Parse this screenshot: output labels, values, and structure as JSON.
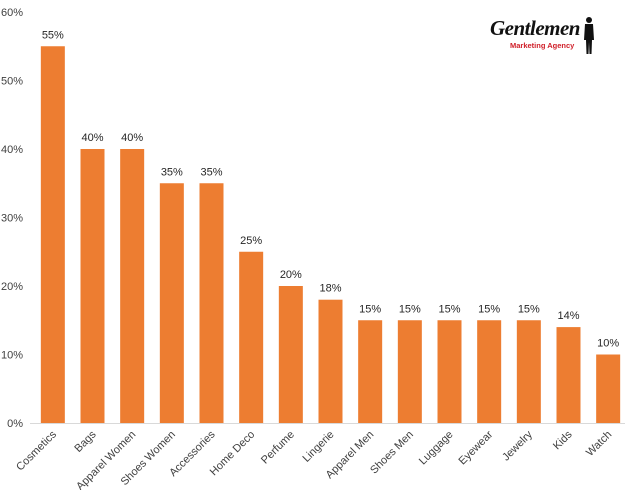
{
  "chart_data": {
    "type": "bar",
    "title": "",
    "xlabel": "",
    "ylabel": "",
    "categories": [
      "Cosmetics",
      "Bags",
      "Apparel Women",
      "Shoes Women",
      "Accessories",
      "Home Deco",
      "Perfume",
      "Lingerie",
      "Apparel Men",
      "Shoes Men",
      "Luggage",
      "Eyewear",
      "Jewelry",
      "Kids",
      "Watch"
    ],
    "values": [
      55,
      40,
      40,
      35,
      35,
      25,
      20,
      18,
      15,
      15,
      15,
      15,
      15,
      14,
      10
    ],
    "value_labels": [
      "55%",
      "40%",
      "40%",
      "35%",
      "35%",
      "25%",
      "20%",
      "18%",
      "15%",
      "15%",
      "15%",
      "15%",
      "15%",
      "14%",
      "10%"
    ],
    "yticks": [
      "0%",
      "10%",
      "20%",
      "30%",
      "40%",
      "50%",
      "60%"
    ],
    "ylim": [
      0,
      60
    ],
    "grid": false,
    "legend": "none",
    "bar_color": "#ED7D31"
  },
  "logo": {
    "name": "Gentlemen",
    "tagline": "Marketing Agency"
  }
}
